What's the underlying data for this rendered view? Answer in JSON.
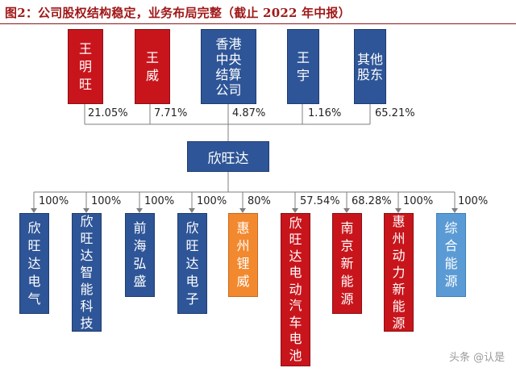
{
  "title": "图2：公司股权结构稳定，业务布局完整（截止 2022 年中报）",
  "shareholders": [
    {
      "name": "王明旺",
      "percent": "21.05%",
      "color": "#c8151c"
    },
    {
      "name": "王威",
      "percent": "7.71%",
      "color": "#c8151c"
    },
    {
      "name": "香港中央结算公司",
      "percent": "4.87%",
      "color": "#2e5597"
    },
    {
      "name": "王宇",
      "percent": "1.16%",
      "color": "#2e5597"
    },
    {
      "name": "其他股东",
      "percent": "65.21%",
      "color": "#2e5597"
    }
  ],
  "company": "欣旺达",
  "subsidiaries": [
    {
      "name": "欣旺达电气",
      "percent": "100%",
      "color": "#2e5597"
    },
    {
      "name": "欣旺达智能科技",
      "percent": "100%",
      "color": "#2e5597"
    },
    {
      "name": "前海弘盛",
      "percent": "100%",
      "color": "#2e5597"
    },
    {
      "name": "欣旺达电子",
      "percent": "100%",
      "color": "#2e5597"
    },
    {
      "name": "惠州锂威",
      "percent": "80%",
      "color": "#f2892f"
    },
    {
      "name": "欣旺达电动汽车电池",
      "percent": "57.54%",
      "color": "#c8151c"
    },
    {
      "name": "南京新能源",
      "percent": "68.28%",
      "color": "#c8151c"
    },
    {
      "name": "惠州动力新能源",
      "percent": "100%",
      "color": "#c8151c"
    },
    {
      "name": "综合能源",
      "percent": "100%",
      "color": "#5b9bd5"
    }
  ],
  "watermark": "头条 @认是"
}
